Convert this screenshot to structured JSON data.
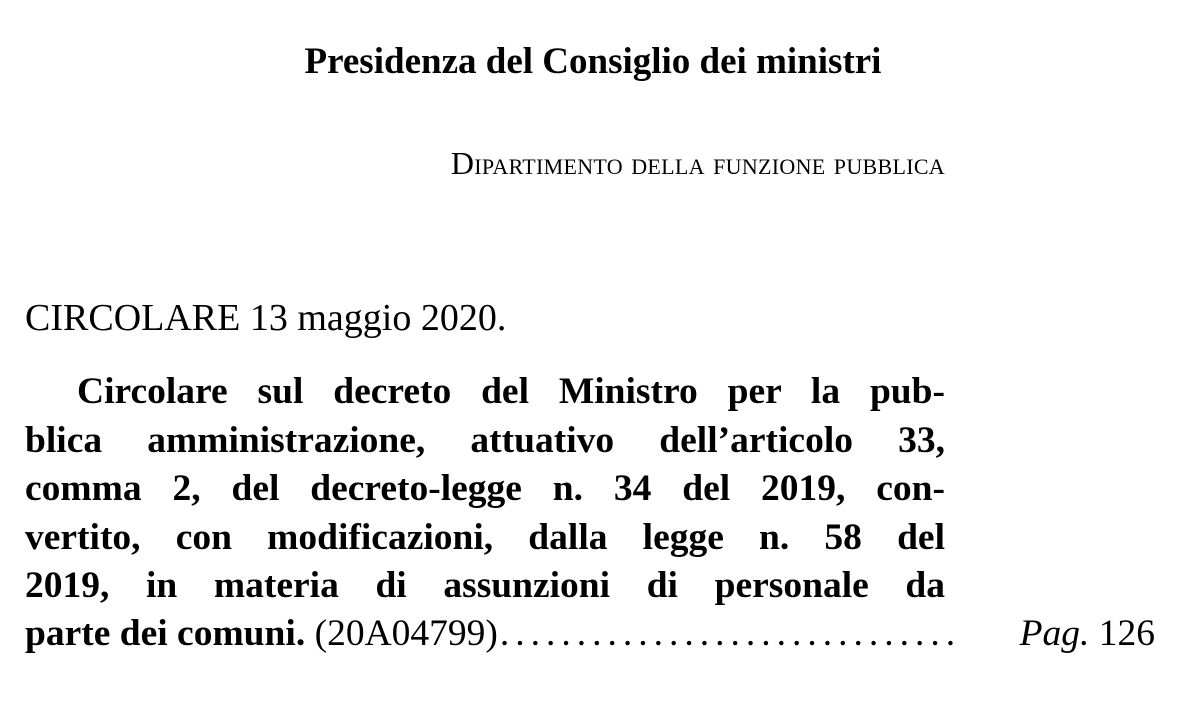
{
  "header": {
    "title": "Presidenza del Consiglio dei ministri",
    "department": "Dipartimento della funzione pubblica"
  },
  "entry": {
    "heading": "CIRCOLARE 13 maggio 2020.",
    "lines": [
      "Circolare sul decreto del Ministro per la pub-",
      "blica amministrazione, attuativo dell’articolo 33,",
      "comma 2, del decreto-legge n. 34 del 2019, con-",
      "vertito, con modificazioni, dalla legge n. 58 del",
      "2019, in materia di assunzioni di personale da"
    ],
    "last_line_bold": "parte dei comuni.",
    "code": "(20A04799)",
    "leader": "................................................",
    "page_label": "Pag.",
    "page_number": "126"
  }
}
